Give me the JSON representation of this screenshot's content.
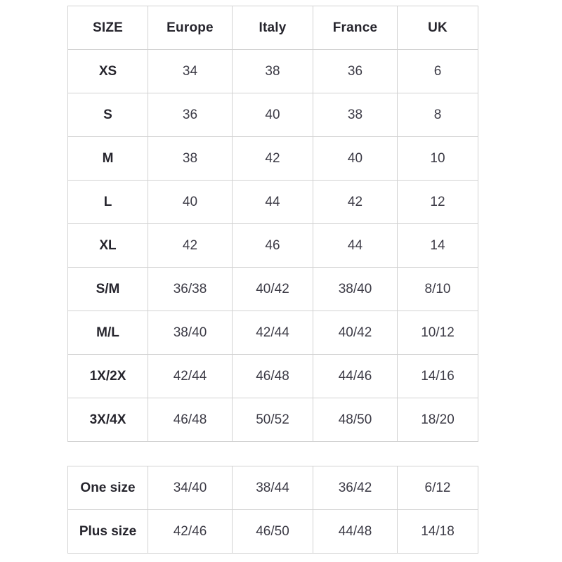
{
  "colors": {
    "background": "#ffffff",
    "border": "#d2d2d2",
    "header_text": "#26252d",
    "cell_text": "#3c3b46"
  },
  "chart_data": {
    "type": "table",
    "title": "",
    "columns": [
      "SIZE",
      "Europe",
      "Italy",
      "France",
      "UK"
    ],
    "rows": [
      [
        "XS",
        "34",
        "38",
        "36",
        "6"
      ],
      [
        "S",
        "36",
        "40",
        "38",
        "8"
      ],
      [
        "M",
        "38",
        "42",
        "40",
        "10"
      ],
      [
        "L",
        "40",
        "44",
        "42",
        "12"
      ],
      [
        "XL",
        "42",
        "46",
        "44",
        "14"
      ],
      [
        "S/M",
        "36/38",
        "40/42",
        "38/40",
        "8/10"
      ],
      [
        "M/L",
        "38/40",
        "42/44",
        "40/42",
        "10/12"
      ],
      [
        "1X/2X",
        "42/44",
        "46/48",
        "44/46",
        "14/16"
      ],
      [
        "3X/4X",
        "46/48",
        "50/52",
        "48/50",
        "18/20"
      ]
    ],
    "secondary_rows": [
      [
        "One size",
        "34/40",
        "38/44",
        "36/42",
        "6/12"
      ],
      [
        "Plus size",
        "42/46",
        "46/50",
        "44/48",
        "14/18"
      ]
    ],
    "layout": {
      "grid": "full-borders",
      "header_row": true,
      "secondary_table_has_header": false
    }
  }
}
